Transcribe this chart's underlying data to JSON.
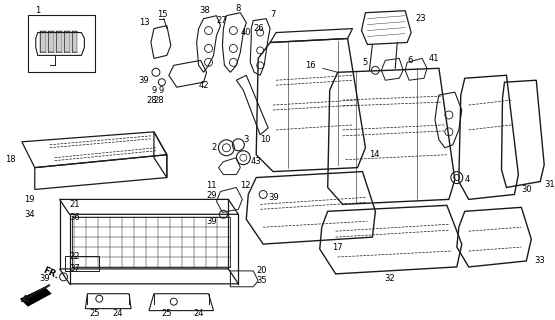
{
  "background_color": "#ffffff",
  "line_color": "#1a1a1a",
  "text_color": "#000000",
  "label_fontsize": 6.0,
  "fig_w": 5.55,
  "fig_h": 3.2,
  "dpi": 100
}
